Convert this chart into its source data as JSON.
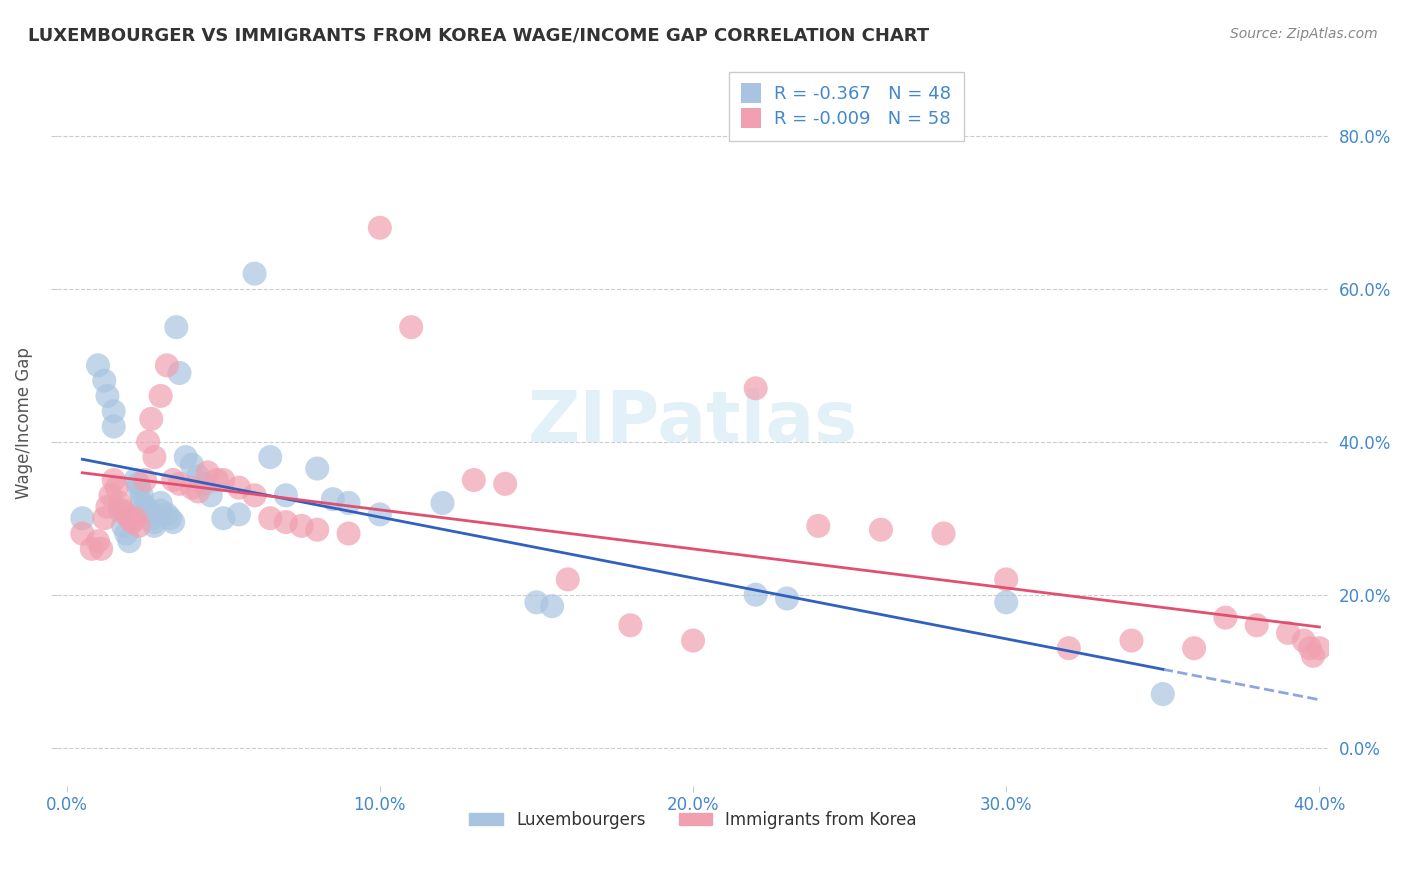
{
  "title": "LUXEMBOURGER VS IMMIGRANTS FROM KOREA WAGE/INCOME GAP CORRELATION CHART",
  "source": "Source: ZipAtlas.com",
  "ylabel": "Wage/Income Gap",
  "xlim": [
    0.0,
    0.4
  ],
  "ylim": [
    -0.05,
    0.9
  ],
  "yticks": [
    0.0,
    0.2,
    0.4,
    0.6,
    0.8
  ],
  "xticks": [
    0.0,
    0.1,
    0.2,
    0.3,
    0.4
  ],
  "background_color": "#ffffff",
  "grid_color": "#cccccc",
  "luxembourgers_color": "#a8c4e0",
  "immigrants_color": "#f0a0b0",
  "trendline_lux_color": "#3060c0",
  "trendline_imm_color": "#e05070",
  "legend_R_lux": "-0.367",
  "legend_N_lux": "48",
  "legend_R_imm": "-0.009",
  "legend_N_imm": "58",
  "lux_x": [
    0.005,
    0.01,
    0.012,
    0.013,
    0.015,
    0.015,
    0.017,
    0.018,
    0.019,
    0.02,
    0.022,
    0.023,
    0.023,
    0.024,
    0.024,
    0.025,
    0.026,
    0.027,
    0.028,
    0.028,
    0.03,
    0.03,
    0.032,
    0.033,
    0.034,
    0.035,
    0.036,
    0.038,
    0.04,
    0.042,
    0.044,
    0.046,
    0.05,
    0.055,
    0.06,
    0.065,
    0.07,
    0.08,
    0.085,
    0.09,
    0.1,
    0.12,
    0.15,
    0.155,
    0.22,
    0.23,
    0.3,
    0.35
  ],
  "lux_y": [
    0.3,
    0.5,
    0.48,
    0.46,
    0.44,
    0.42,
    0.31,
    0.29,
    0.28,
    0.27,
    0.35,
    0.345,
    0.34,
    0.33,
    0.32,
    0.315,
    0.31,
    0.3,
    0.295,
    0.29,
    0.32,
    0.31,
    0.305,
    0.3,
    0.295,
    0.55,
    0.49,
    0.38,
    0.37,
    0.355,
    0.345,
    0.33,
    0.3,
    0.305,
    0.62,
    0.38,
    0.33,
    0.365,
    0.325,
    0.32,
    0.305,
    0.32,
    0.19,
    0.185,
    0.2,
    0.195,
    0.19,
    0.07
  ],
  "imm_x": [
    0.005,
    0.008,
    0.01,
    0.011,
    0.012,
    0.013,
    0.014,
    0.015,
    0.016,
    0.017,
    0.018,
    0.019,
    0.02,
    0.021,
    0.022,
    0.023,
    0.025,
    0.026,
    0.027,
    0.028,
    0.03,
    0.032,
    0.034,
    0.036,
    0.04,
    0.042,
    0.045,
    0.048,
    0.05,
    0.055,
    0.06,
    0.065,
    0.07,
    0.075,
    0.08,
    0.09,
    0.1,
    0.11,
    0.13,
    0.14,
    0.16,
    0.18,
    0.2,
    0.22,
    0.24,
    0.26,
    0.28,
    0.3,
    0.32,
    0.34,
    0.36,
    0.37,
    0.38,
    0.39,
    0.395,
    0.397,
    0.398,
    0.4
  ],
  "imm_y": [
    0.28,
    0.26,
    0.27,
    0.26,
    0.3,
    0.315,
    0.33,
    0.35,
    0.34,
    0.32,
    0.31,
    0.305,
    0.3,
    0.295,
    0.3,
    0.29,
    0.35,
    0.4,
    0.43,
    0.38,
    0.46,
    0.5,
    0.35,
    0.345,
    0.34,
    0.335,
    0.36,
    0.35,
    0.35,
    0.34,
    0.33,
    0.3,
    0.295,
    0.29,
    0.285,
    0.28,
    0.68,
    0.55,
    0.35,
    0.345,
    0.22,
    0.16,
    0.14,
    0.47,
    0.29,
    0.285,
    0.28,
    0.22,
    0.13,
    0.14,
    0.13,
    0.17,
    0.16,
    0.15,
    0.14,
    0.13,
    0.12,
    0.13
  ]
}
